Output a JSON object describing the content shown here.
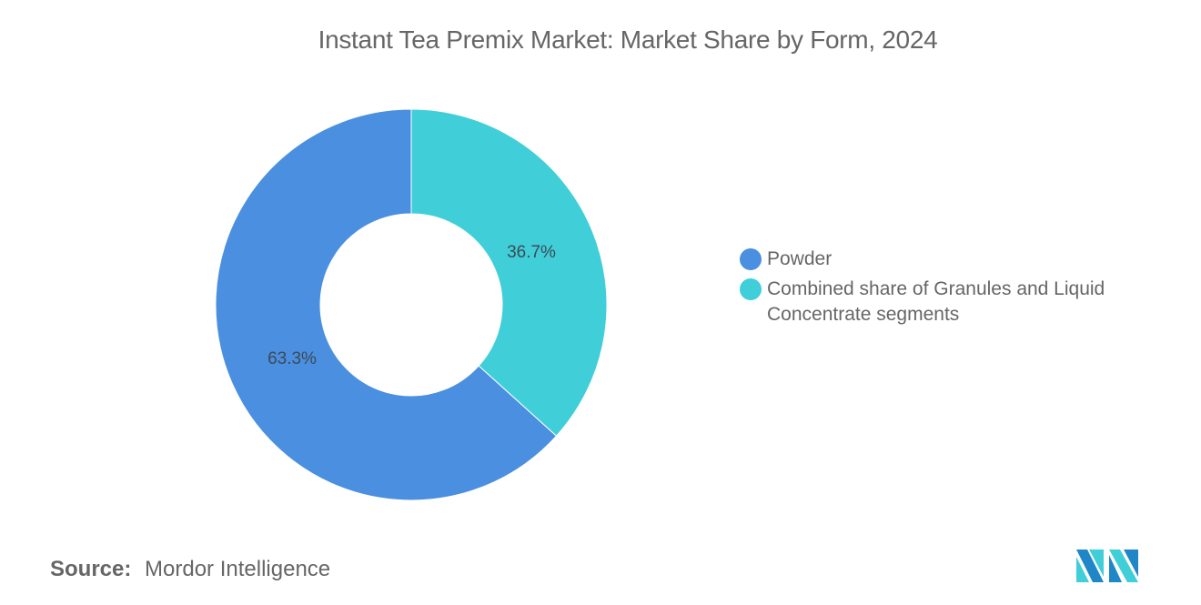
{
  "title": "Instant Tea Premix Market: Market Share by Form, 2024",
  "chart_data": {
    "type": "pie",
    "subtype": "donut",
    "title": "Instant Tea Premix Market: Market Share by Form, 2024",
    "categories": [
      "Powder",
      "Combined share of Granules and Liquid Concentrate segments"
    ],
    "values": [
      63.3,
      36.7
    ],
    "unit": "%",
    "data_labels": [
      "63.3%",
      "36.7%"
    ],
    "colors": [
      "#4a8fe0",
      "#40cfd8"
    ],
    "start_angle_deg": 0,
    "direction": "clockwise-from-top (second category first)",
    "legend_position": "right",
    "grid": false
  },
  "legend": {
    "items": [
      {
        "label": "Powder",
        "color": "#4a8fe0"
      },
      {
        "label": "Combined share of Granules and Liquid Concentrate segments",
        "color": "#40cfd8"
      }
    ]
  },
  "source": {
    "label": "Source:",
    "value": "Mordor Intelligence"
  },
  "logo": {
    "icon": "mordor-intelligence-logo-icon",
    "colors": [
      "#1f86c8",
      "#40cfd8"
    ]
  }
}
